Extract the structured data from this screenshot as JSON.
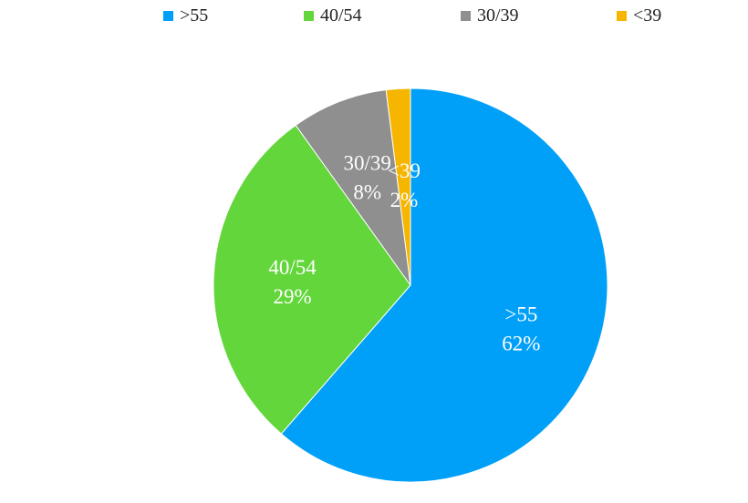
{
  "chart_data": {
    "type": "pie",
    "categories": [
      ">55",
      "40/54",
      "30/39",
      "<39"
    ],
    "values": [
      62,
      29,
      8,
      2
    ],
    "value_labels": [
      "62%",
      "29%",
      "8%",
      "2%"
    ],
    "colors": [
      "#00a0f8",
      "#63d63b",
      "#8f8f8f",
      "#f6b600"
    ],
    "legend_position": "top",
    "start_angle": "12 o'clock",
    "direction": "clockwise"
  }
}
